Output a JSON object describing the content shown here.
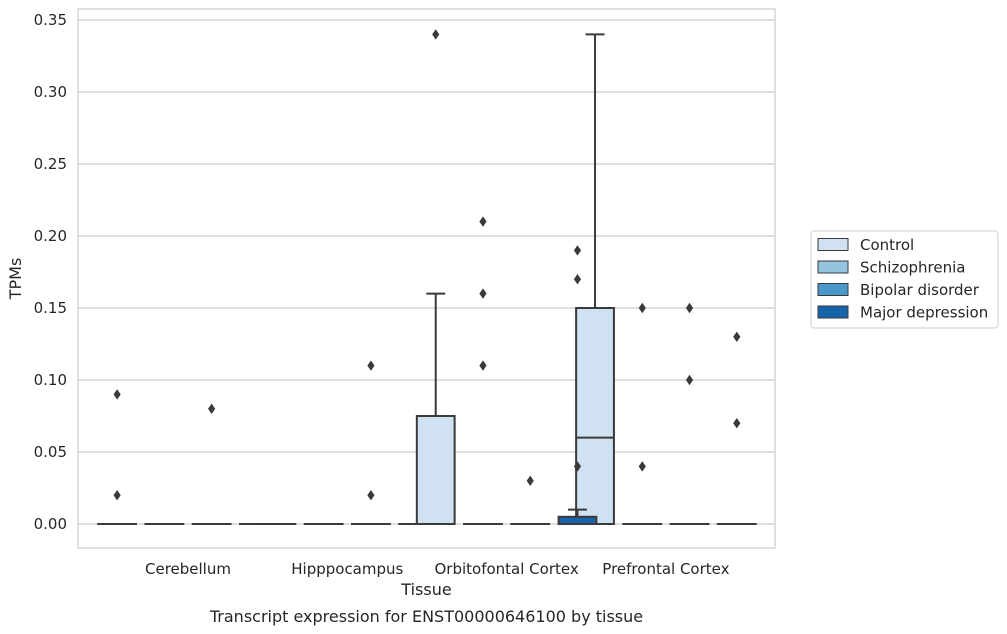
{
  "chart_data": {
    "type": "box",
    "xlabel": "Tissue",
    "ylabel": "TPMs",
    "caption": "Transcript expression for ENST00000646100 by tissue",
    "ylim": [
      -0.017,
      0.357
    ],
    "yticks": [
      "0.00",
      "0.05",
      "0.10",
      "0.15",
      "0.20",
      "0.25",
      "0.30",
      "0.35"
    ],
    "grid": "horizontal",
    "legend_position": "right",
    "categories": [
      "Cerebellum",
      "Hipppocampus",
      "Orbitofontal Cortex",
      "Prefrontal Cortex"
    ],
    "series": [
      {
        "name": "Control",
        "color": "#d0e1f2",
        "boxes": [
          {
            "q1": 0,
            "median": 0,
            "q3": 0,
            "whisker_low": 0,
            "whisker_high": 0,
            "outliers": [
              0.09,
              0.02
            ]
          },
          {
            "q1": 0,
            "median": 0,
            "q3": 0,
            "whisker_low": 0,
            "whisker_high": 0,
            "outliers": []
          },
          {
            "q1": 0,
            "median": 0,
            "q3": 0.075,
            "whisker_low": 0,
            "whisker_high": 0.16,
            "outliers": [
              0.34
            ]
          },
          {
            "q1": 0,
            "median": 0.06,
            "q3": 0.15,
            "whisker_low": 0,
            "whisker_high": 0.34,
            "outliers": []
          }
        ]
      },
      {
        "name": "Schizophrenia",
        "color": "#94c4df",
        "boxes": [
          {
            "q1": 0,
            "median": 0,
            "q3": 0,
            "whisker_low": 0,
            "whisker_high": 0,
            "outliers": []
          },
          {
            "q1": 0,
            "median": 0,
            "q3": 0,
            "whisker_low": 0,
            "whisker_high": 0,
            "outliers": []
          },
          {
            "q1": 0,
            "median": 0,
            "q3": 0,
            "whisker_low": 0,
            "whisker_high": 0,
            "outliers": [
              0.21,
              0.16,
              0.11
            ]
          },
          {
            "q1": 0,
            "median": 0,
            "q3": 0,
            "whisker_low": 0,
            "whisker_high": 0,
            "outliers": [
              0.15,
              0.04
            ]
          }
        ]
      },
      {
        "name": "Bipolar disorder",
        "color": "#4a98c9",
        "boxes": [
          {
            "q1": 0,
            "median": 0,
            "q3": 0,
            "whisker_low": 0,
            "whisker_high": 0,
            "outliers": [
              0.08
            ]
          },
          {
            "q1": 0,
            "median": 0,
            "q3": 0,
            "whisker_low": 0,
            "whisker_high": 0,
            "outliers": [
              0.11,
              0.02
            ]
          },
          {
            "q1": 0,
            "median": 0,
            "q3": 0,
            "whisker_low": 0,
            "whisker_high": 0,
            "outliers": [
              0.03
            ]
          },
          {
            "q1": 0,
            "median": 0,
            "q3": 0,
            "whisker_low": 0,
            "whisker_high": 0,
            "outliers": [
              0.15,
              0.1
            ]
          }
        ]
      },
      {
        "name": "Major depression",
        "color": "#1764ab",
        "boxes": [
          {
            "q1": 0,
            "median": 0,
            "q3": 0,
            "whisker_low": 0,
            "whisker_high": 0,
            "outliers": []
          },
          {
            "q1": 0,
            "median": 0,
            "q3": 0,
            "whisker_low": 0,
            "whisker_high": 0,
            "outliers": []
          },
          {
            "q1": 0,
            "median": 0,
            "q3": 0.005,
            "whisker_low": 0,
            "whisker_high": 0.01,
            "outliers": [
              0.19,
              0.17,
              0.04
            ]
          },
          {
            "q1": 0,
            "median": 0,
            "q3": 0,
            "whisker_low": 0,
            "whisker_high": 0,
            "outliers": [
              0.13,
              0.07
            ]
          }
        ]
      }
    ]
  }
}
